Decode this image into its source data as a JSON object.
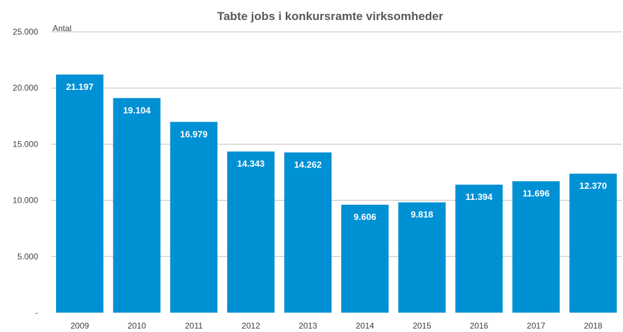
{
  "chart_data": {
    "type": "bar",
    "title": "Tabte jobs  i konkursramte virksomheder",
    "ylabel": "Antal",
    "xlabel": "",
    "categories": [
      "2009",
      "2010",
      "2011",
      "2012",
      "2013",
      "2014",
      "2015",
      "2016",
      "2017",
      "2018"
    ],
    "values": [
      21197,
      19104,
      16979,
      14343,
      14262,
      9606,
      9818,
      11394,
      11696,
      12370
    ],
    "data_labels": [
      "21.197",
      "19.104",
      "16.979",
      "14.343",
      "14.262",
      "9.606",
      "9.818",
      "11.394",
      "11.696",
      "12.370"
    ],
    "ylim": [
      0,
      25000
    ],
    "yticks": [
      0,
      5000,
      10000,
      15000,
      20000,
      25000
    ],
    "ytick_labels": [
      "-",
      "5.000",
      "10.000",
      "15.000",
      "20.000",
      "25.000"
    ],
    "grid": true,
    "legend": "none",
    "bar_color": "#0090D4",
    "grid_color": "#BFBFBF"
  }
}
